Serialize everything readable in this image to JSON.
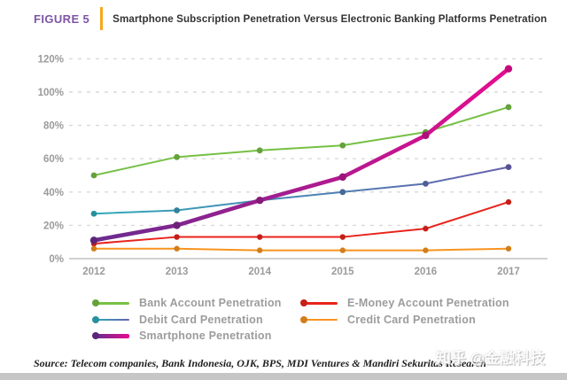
{
  "header": {
    "figure_label": "FIGURE 5",
    "title": "Smartphone Subscription Penetration Versus Electronic Banking Platforms Penetration"
  },
  "colors": {
    "figure_label": "#7d55a5",
    "header_divider": "#f5a81c",
    "title_text": "#333333",
    "grid_dashed": "#d9d9d9",
    "axis_zero_line": "#c0c0c0",
    "axis_text": "#9b9b9b",
    "legend_text": "#9c9c9c",
    "bottom_bar": "#c6c6c6"
  },
  "chart_data": {
    "type": "line",
    "title": "Smartphone Subscription Penetration Versus Electronic Banking Platforms Penetration",
    "categories": [
      "2012",
      "2013",
      "2014",
      "2015",
      "2016",
      "2017"
    ],
    "series": [
      {
        "name": "Bank Account Penetration",
        "values": [
          50,
          61,
          65,
          68,
          76,
          91
        ],
        "color": "#76c045",
        "width": 2,
        "dot_r": 3.4
      },
      {
        "name": "Debit Card Penetration",
        "values": [
          27,
          29,
          35,
          40,
          45,
          55
        ],
        "gradient": [
          "#2fa9b9",
          "#6760ae"
        ],
        "width": 2,
        "dot_r": 3.4
      },
      {
        "name": "Smartphone Penetration",
        "values": [
          11,
          20,
          35,
          49,
          74,
          114
        ],
        "gradient": [
          "#6a2c8f",
          "#e60c8f"
        ],
        "width": 4.6,
        "dot_r": 4.2
      },
      {
        "name": "E-Money Account Penetration",
        "values": [
          9,
          13,
          13,
          13,
          18,
          34
        ],
        "color": "#e8231b",
        "width": 2,
        "dot_r": 3.2
      },
      {
        "name": "Credit Card Penetration",
        "values": [
          6,
          6,
          5,
          5,
          5,
          6
        ],
        "color": "#f7941e",
        "width": 2,
        "dot_r": 3.2
      }
    ],
    "yticks": [
      "120%",
      "100%",
      "80%",
      "60%",
      "40%",
      "20%",
      "0%"
    ],
    "ylim": [
      0,
      120
    ],
    "xlabel": "",
    "ylabel": "",
    "grid": "horizontal dashed",
    "legend_position": "bottom two-column",
    "legend_columns": [
      [
        0,
        1,
        2
      ],
      [
        3,
        4
      ]
    ]
  },
  "source": "Source: Telecom companies, Bank Indonesia, OJK, BPS, MDI Ventures & Mandiri Sekuritas Research",
  "watermark": "知乎 @金融科技"
}
